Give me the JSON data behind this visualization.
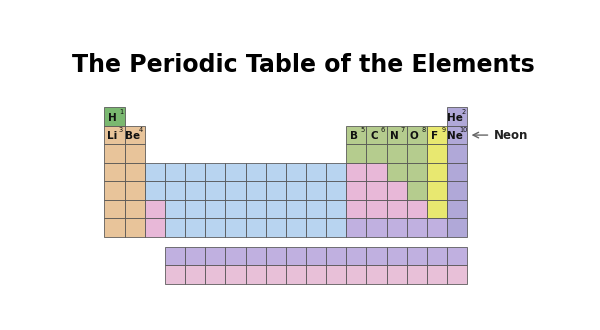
{
  "title": "The Periodic Table of the Elements",
  "title_fontsize": 17,
  "bg_color": "#ffffff",
  "H_GREEN": "#7ab870",
  "PEACH": "#e8c49a",
  "BLUE": "#b8d4f0",
  "GREEN": "#b5cc8e",
  "YELLOW": "#e8e870",
  "PURPLE": "#b0a8d8",
  "PINK": "#e8b8d8",
  "LAVENDER": "#c0b0e0",
  "ACTPINK": "#e8c0d8",
  "neon_arrow_text": "Neon",
  "labeled_elements": [
    {
      "symbol": "H",
      "number": 1,
      "row": 1,
      "col": 1
    },
    {
      "symbol": "He",
      "number": 2,
      "row": 1,
      "col": 18
    },
    {
      "symbol": "Li",
      "number": 3,
      "row": 2,
      "col": 1
    },
    {
      "symbol": "Be",
      "number": 4,
      "row": 2,
      "col": 2
    },
    {
      "symbol": "B",
      "number": 5,
      "row": 2,
      "col": 13
    },
    {
      "symbol": "C",
      "number": 6,
      "row": 2,
      "col": 14
    },
    {
      "symbol": "N",
      "number": 7,
      "row": 2,
      "col": 15
    },
    {
      "symbol": "O",
      "number": 8,
      "row": 2,
      "col": 16
    },
    {
      "symbol": "F",
      "number": 9,
      "row": 2,
      "col": 17
    },
    {
      "symbol": "Ne",
      "number": 10,
      "row": 2,
      "col": 18
    }
  ]
}
